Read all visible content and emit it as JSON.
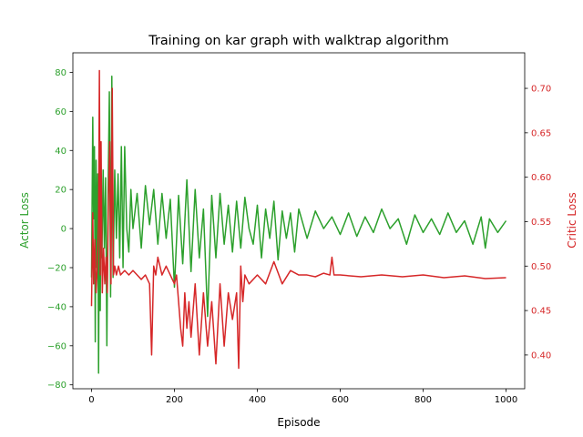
{
  "chart_data": {
    "type": "line",
    "title": "Training on kar graph with walktrap algorithm",
    "xlabel": "Episode",
    "xlim": [
      -45,
      1045
    ],
    "xticks": [
      0,
      200,
      400,
      600,
      800,
      1000
    ],
    "grid": false,
    "legend": "none",
    "axes": {
      "left": {
        "ylabel": "Actor Loss",
        "ylim": [
          -82,
          90
        ],
        "yticks": [
          -80,
          -60,
          -40,
          -20,
          0,
          20,
          40,
          60,
          80
        ],
        "color": "#2ca02c"
      },
      "right": {
        "ylabel": "Critic Loss",
        "ylim": [
          0.362,
          0.74
        ],
        "yticks": [
          0.4,
          0.45,
          0.5,
          0.55,
          0.6,
          0.65,
          0.7
        ],
        "color": "#d62728"
      }
    },
    "series": [
      {
        "axis": "left",
        "color": "#2ca02c",
        "x": [
          0,
          3,
          5,
          7,
          9,
          11,
          13,
          15,
          17,
          19,
          21,
          23,
          25,
          28,
          31,
          34,
          37,
          40,
          43,
          46,
          49,
          52,
          56,
          60,
          64,
          68,
          72,
          76,
          80,
          85,
          90,
          95,
          100,
          110,
          120,
          130,
          140,
          150,
          160,
          170,
          180,
          190,
          200,
          210,
          220,
          230,
          240,
          250,
          260,
          270,
          280,
          290,
          300,
          310,
          320,
          330,
          340,
          350,
          360,
          370,
          380,
          390,
          400,
          410,
          420,
          430,
          440,
          450,
          460,
          470,
          480,
          490,
          500,
          520,
          540,
          560,
          580,
          600,
          620,
          640,
          660,
          680,
          700,
          720,
          740,
          760,
          780,
          800,
          820,
          840,
          860,
          880,
          900,
          920,
          940,
          950,
          960,
          980,
          1000
        ],
        "y": [
          -25,
          57,
          5,
          42,
          -58,
          35,
          -20,
          28,
          -74,
          12,
          -42,
          25,
          -15,
          30,
          -10,
          26,
          -60,
          20,
          70,
          -35,
          78,
          -25,
          30,
          -5,
          28,
          -15,
          42,
          -20,
          42,
          0,
          -12,
          20,
          0,
          18,
          -10,
          22,
          2,
          20,
          -8,
          18,
          -5,
          15,
          -30,
          17,
          -18,
          25,
          -22,
          20,
          -15,
          10,
          -45,
          17,
          -15,
          18,
          -8,
          12,
          -12,
          14,
          -10,
          16,
          0,
          -8,
          12,
          -15,
          10,
          -5,
          14,
          -16,
          9,
          -5,
          8,
          -12,
          10,
          -5,
          9,
          0,
          6,
          -3,
          8,
          -4,
          6,
          -2,
          10,
          0,
          5,
          -8,
          7,
          -2,
          5,
          -3,
          8,
          -2,
          4,
          -8,
          6,
          -10,
          5,
          -2,
          4
        ]
      },
      {
        "axis": "right",
        "color": "#d62728",
        "x": [
          0,
          3,
          5,
          8,
          11,
          14,
          17,
          19,
          21,
          23,
          26,
          29,
          32,
          35,
          38,
          41,
          44,
          47,
          50,
          53,
          56,
          60,
          65,
          70,
          80,
          90,
          100,
          110,
          120,
          130,
          140,
          145,
          150,
          155,
          160,
          170,
          180,
          190,
          200,
          205,
          210,
          215,
          220,
          225,
          230,
          235,
          240,
          250,
          260,
          270,
          280,
          290,
          300,
          310,
          320,
          330,
          340,
          350,
          355,
          360,
          365,
          370,
          380,
          400,
          420,
          440,
          460,
          480,
          500,
          520,
          540,
          560,
          575,
          580,
          585,
          600,
          650,
          700,
          750,
          800,
          850,
          900,
          950,
          1000
        ],
        "y": [
          0.455,
          0.56,
          0.48,
          0.53,
          0.47,
          0.5,
          0.55,
          0.72,
          0.49,
          0.64,
          0.47,
          0.52,
          0.48,
          0.51,
          0.47,
          0.58,
          0.64,
          0.48,
          0.7,
          0.49,
          0.5,
          0.49,
          0.5,
          0.49,
          0.495,
          0.49,
          0.495,
          0.49,
          0.485,
          0.49,
          0.48,
          0.4,
          0.5,
          0.49,
          0.51,
          0.49,
          0.5,
          0.49,
          0.48,
          0.49,
          0.46,
          0.43,
          0.41,
          0.47,
          0.43,
          0.46,
          0.42,
          0.48,
          0.4,
          0.47,
          0.41,
          0.46,
          0.39,
          0.48,
          0.41,
          0.47,
          0.44,
          0.47,
          0.385,
          0.5,
          0.46,
          0.49,
          0.48,
          0.49,
          0.48,
          0.505,
          0.48,
          0.495,
          0.49,
          0.49,
          0.488,
          0.492,
          0.49,
          0.51,
          0.49,
          0.49,
          0.488,
          0.49,
          0.488,
          0.49,
          0.487,
          0.489,
          0.486,
          0.487
        ]
      }
    ]
  }
}
